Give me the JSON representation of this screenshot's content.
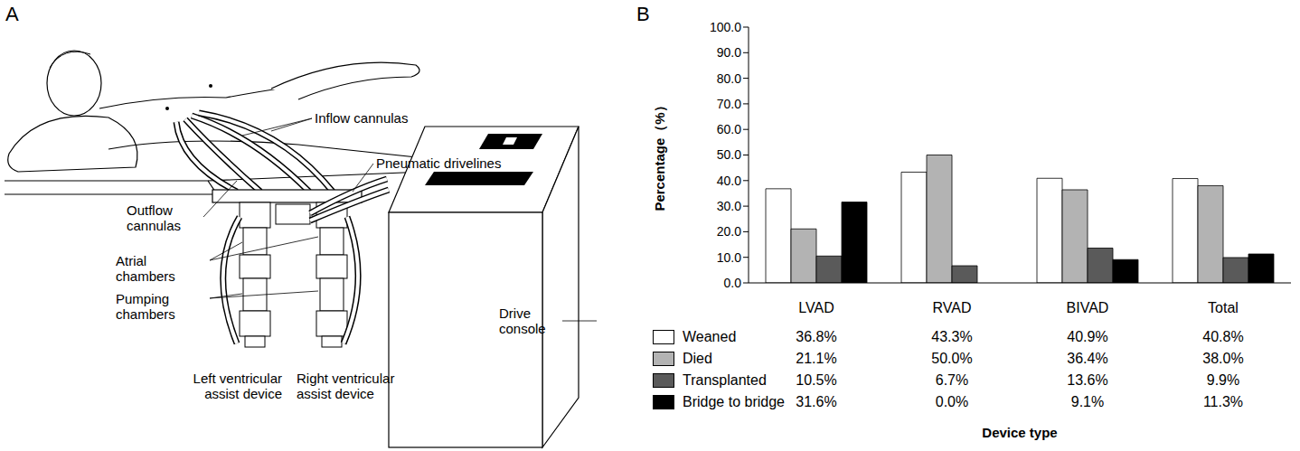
{
  "panel_a": {
    "letter": "A",
    "labels": {
      "inflow": "Inflow cannulas",
      "drivelines": "Pneumatic drivelines",
      "outflow": "Outflow cannulas",
      "atrial": "Atrial chambers",
      "pumping": "Pumping chambers",
      "lvad": "Left ventricular assist device",
      "rvad": "Right ventricular assist device",
      "console": "Drive console"
    }
  },
  "chart_data": {
    "panel": "B",
    "type": "bar",
    "y_label": "Percentage（%）",
    "x_label": "Device type",
    "categories": [
      "LVAD",
      "RVAD",
      "BIVAD",
      "Total"
    ],
    "ylim": [
      0,
      100
    ],
    "yticks": [
      {
        "value": 0,
        "label": "0.0"
      },
      {
        "value": 10,
        "label": "10.0"
      },
      {
        "value": 20,
        "label": "20.0"
      },
      {
        "value": 30,
        "label": "30.0"
      },
      {
        "value": 40,
        "label": "40.0"
      },
      {
        "value": 50,
        "label": "50.0"
      },
      {
        "value": 60,
        "label": "60.0"
      },
      {
        "value": 70,
        "label": "70.0"
      },
      {
        "value": 80,
        "label": "80.0"
      },
      {
        "value": 90,
        "label": "90.0"
      },
      {
        "value": 100,
        "label": "100.0"
      }
    ],
    "grid": false,
    "series": [
      {
        "name": "Weaned",
        "color": "#ffffff",
        "values": [
          36.8,
          43.3,
          40.9,
          40.8
        ],
        "value_labels": [
          "36.8%",
          "43.3%",
          "40.9%",
          "40.8%"
        ]
      },
      {
        "name": "Died",
        "color": "#b3b3b3",
        "values": [
          21.1,
          50.0,
          36.4,
          38.0
        ],
        "value_labels": [
          "21.1%",
          "50.0%",
          "36.4%",
          "38.0%"
        ]
      },
      {
        "name": "Transplanted",
        "color": "#5a5a5a",
        "values": [
          10.5,
          6.7,
          13.6,
          9.9
        ],
        "value_labels": [
          "10.5%",
          "6.7%",
          "13.6%",
          "9.9%"
        ]
      },
      {
        "name": "Bridge to bridge",
        "color": "#000000",
        "values": [
          31.6,
          0.0,
          9.1,
          11.3
        ],
        "value_labels": [
          "31.6%",
          "0.0%",
          "9.1%",
          "11.3%"
        ]
      }
    ]
  }
}
